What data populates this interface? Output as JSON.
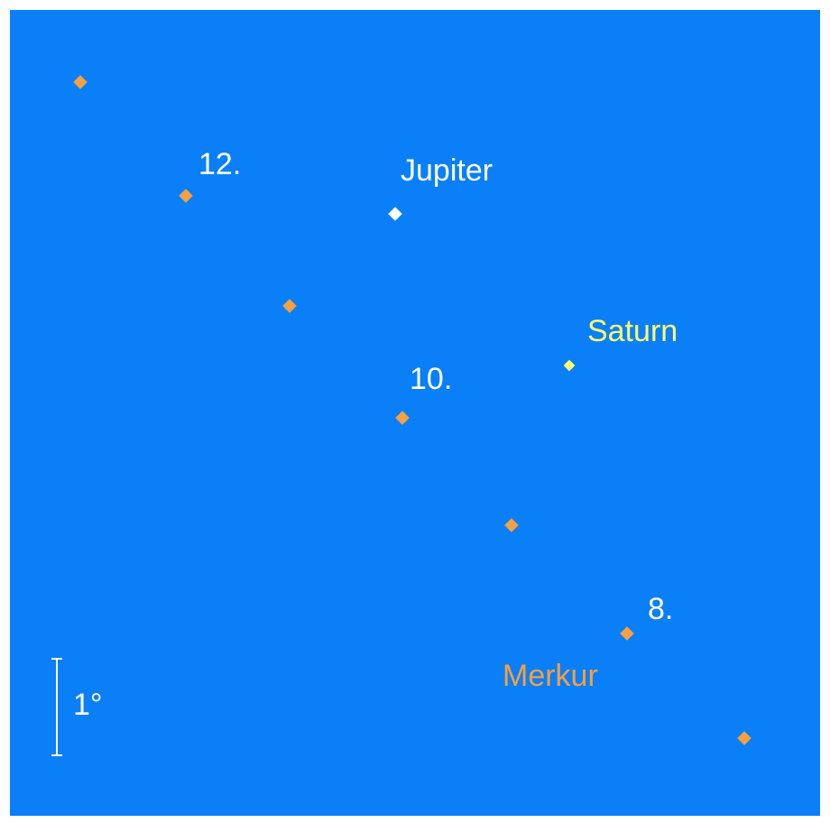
{
  "colors": {
    "background": "#0a7ff7",
    "border": "#ffffff",
    "mercury": "#f7a040",
    "jupiter": "#ffffff",
    "saturn": "#ffff70",
    "text": "#ffffff"
  },
  "labels": {
    "jupiter": "Jupiter",
    "saturn": "Saturn",
    "mercury": "Merkur",
    "date_12": "12.",
    "date_10": "10.",
    "date_8": "8."
  },
  "scale_bar": {
    "label": "1°"
  }
}
